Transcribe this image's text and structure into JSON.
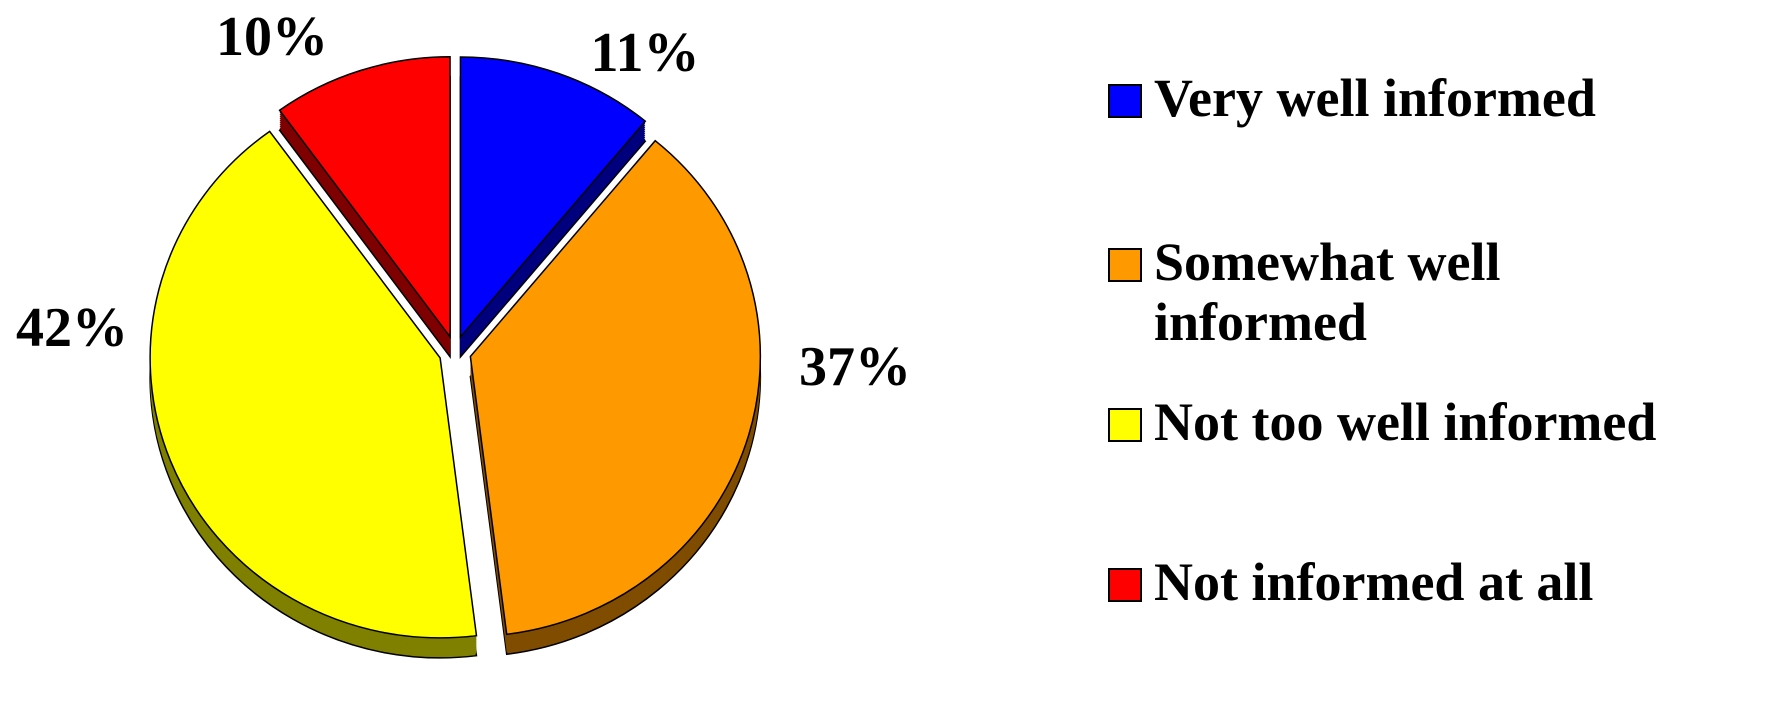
{
  "chart_data": {
    "type": "pie",
    "categories": [
      "Very well informed",
      "Somewhat well informed",
      "Not too well informed",
      "Not informed at all"
    ],
    "values": [
      11,
      37,
      42,
      10
    ],
    "value_labels": [
      "11%",
      "37%",
      "42%",
      "10%"
    ],
    "colors": [
      "#0000ff",
      "#ff9900",
      "#ffff00",
      "#ff0000"
    ],
    "legend": "right"
  }
}
